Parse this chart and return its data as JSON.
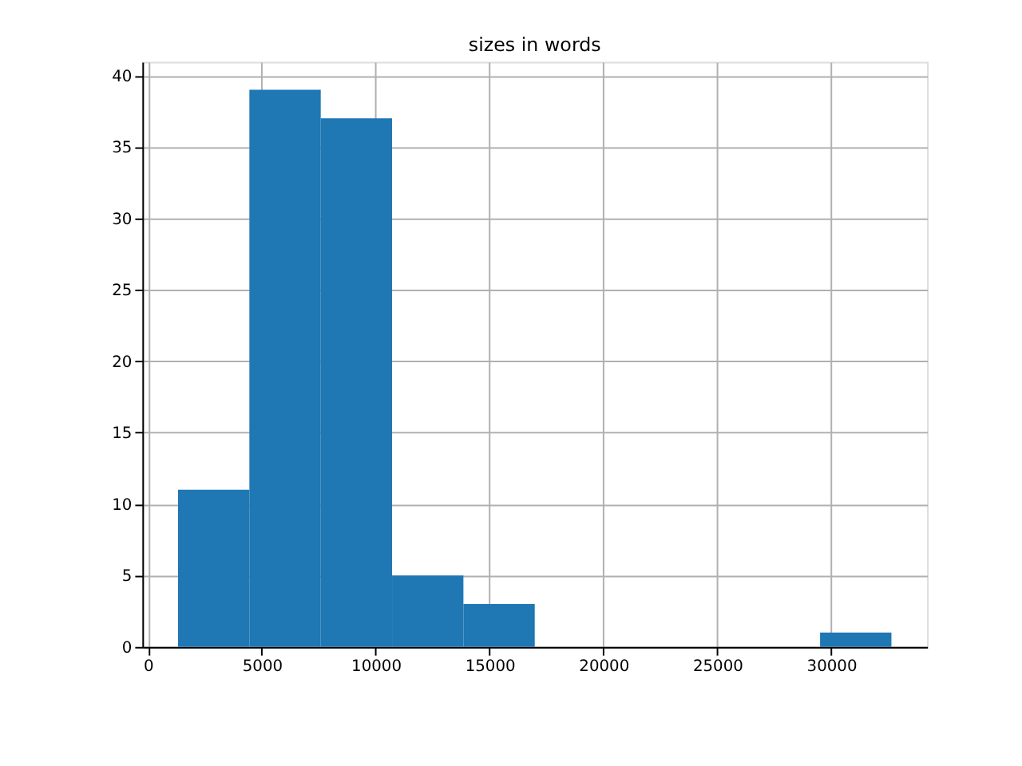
{
  "chart_data": {
    "type": "histogram",
    "title": "sizes in words",
    "bins": [
      1322,
      4454,
      7587,
      10719,
      13851,
      16983,
      20115,
      23248,
      26380,
      29512,
      32644
    ],
    "values": [
      11,
      39,
      37,
      5,
      3,
      0,
      0,
      0,
      0,
      1
    ],
    "color": "#1f77b4",
    "xlim": [
      -244,
      34210
    ],
    "xticks": [
      0,
      5000,
      10000,
      15000,
      20000,
      25000,
      30000
    ],
    "ylim": [
      0,
      40.95
    ],
    "yticks": [
      0,
      5,
      10,
      15,
      20,
      25,
      30,
      35,
      40
    ],
    "grid": true
  }
}
